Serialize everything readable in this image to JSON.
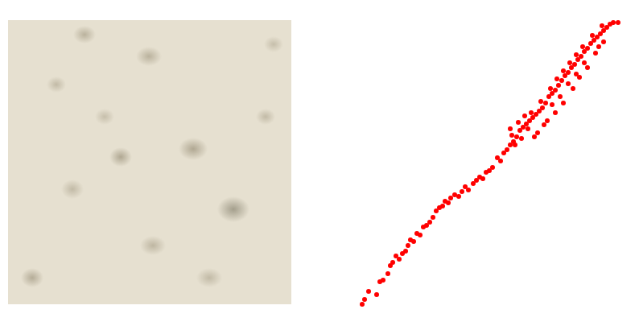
{
  "chart_data": {
    "type": "scatter",
    "color": "red",
    "marker": "circle",
    "x": [
      10,
      13,
      18,
      28,
      32,
      36,
      42,
      45,
      48,
      52,
      56,
      60,
      64,
      67,
      70,
      74,
      78,
      82,
      86,
      90,
      94,
      98,
      102,
      106,
      110,
      113,
      117,
      120,
      125,
      130,
      134,
      138,
      142,
      148,
      152,
      156,
      160,
      164,
      168,
      172,
      178,
      182,
      186,
      190,
      194,
      198,
      202,
      196,
      206,
      210,
      214,
      218,
      222,
      226,
      220,
      230,
      234,
      238,
      232,
      242,
      246,
      250,
      244,
      254,
      258,
      252,
      262,
      266,
      260,
      270,
      274,
      268,
      278,
      282,
      276,
      286,
      290,
      284,
      294,
      298,
      302,
      296,
      306,
      310,
      314,
      308,
      318,
      322,
      328,
      224,
      228,
      240,
      250,
      260,
      272,
      280,
      290,
      300,
      310,
      246,
      236,
      256,
      266,
      276,
      286,
      304,
      216,
      208,
      200,
      212,
      204,
      194
    ],
    "y": [
      17,
      23,
      33,
      29,
      45,
      47,
      55,
      65,
      69,
      77,
      73,
      80,
      83,
      90,
      97,
      95,
      105,
      103,
      113,
      115,
      119,
      125,
      133,
      137,
      139,
      145,
      143,
      149,
      153,
      151,
      157,
      163,
      159,
      167,
      171,
      175,
      173,
      181,
      183,
      187,
      199,
      195,
      205,
      209,
      215,
      219,
      225,
      227,
      233,
      237,
      241,
      245,
      249,
      253,
      255,
      257,
      261,
      267,
      269,
      275,
      279,
      283,
      285,
      289,
      295,
      297,
      301,
      305,
      307,
      311,
      315,
      317,
      321,
      325,
      327,
      331,
      335,
      337,
      341,
      345,
      349,
      351,
      353,
      357,
      361,
      363,
      365,
      367,
      367,
      225,
      230,
      245,
      255,
      267,
      285,
      299,
      311,
      329,
      343,
      265,
      240,
      275,
      291,
      303,
      317,
      337,
      235,
      223,
      215,
      251,
      243,
      235
    ],
    "xlim": [
      0,
      350
    ],
    "ylim": [
      0,
      380
    ],
    "tick_labels": false,
    "grid": false
  }
}
